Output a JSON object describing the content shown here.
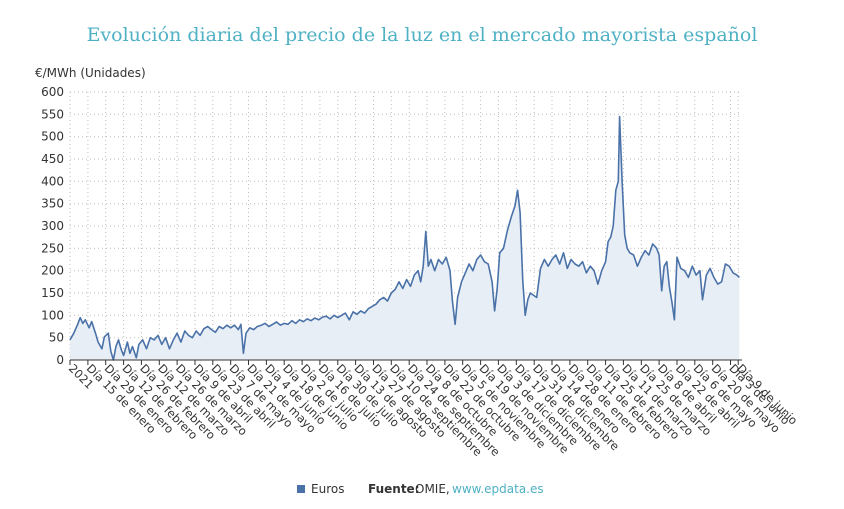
{
  "title": "Evolución diaria del precio de la luz en el mercado mayorista español",
  "footer": {
    "legend_label": "Euros",
    "source_key": "Fuente:",
    "source_value": "OMIE,",
    "source_link": "www.epdata.es"
  },
  "colors": {
    "title": "#4fb1c4",
    "line": "#4a72a8",
    "fill": "#e8eef6",
    "link": "#4fb1c4"
  },
  "chart_data": {
    "type": "area",
    "title": "Evolución diaria del precio de la luz en el mercado mayorista español",
    "ylabel": "€/MWh (Unidades)",
    "xlabel": "",
    "ylim": [
      0,
      600
    ],
    "yticks": [
      0,
      50,
      100,
      150,
      200,
      250,
      300,
      350,
      400,
      450,
      500,
      550,
      600
    ],
    "grid": true,
    "legend": "bottom",
    "x_start": "2021-01-01",
    "x_end": "2022-06-12",
    "xtick_labels": [
      {
        "date": "2021-01-01",
        "label": "2021"
      },
      {
        "date": "2021-01-15",
        "label": "Día 15 de enero"
      },
      {
        "date": "2021-01-29",
        "label": "Día 29 de enero"
      },
      {
        "date": "2021-02-12",
        "label": "Día 12 de febrero"
      },
      {
        "date": "2021-02-26",
        "label": "Día 26 de febrero"
      },
      {
        "date": "2021-03-12",
        "label": "Día 12 de marzo"
      },
      {
        "date": "2021-03-26",
        "label": "Día 26 de marzo"
      },
      {
        "date": "2021-04-09",
        "label": "Día 9 de abril"
      },
      {
        "date": "2021-04-23",
        "label": "Día 23 de abril"
      },
      {
        "date": "2021-05-07",
        "label": "Día 7 de mayo"
      },
      {
        "date": "2021-05-21",
        "label": "Día 21 de mayo"
      },
      {
        "date": "2021-06-04",
        "label": "Día 4 de junio"
      },
      {
        "date": "2021-06-18",
        "label": "Día 18 de junio"
      },
      {
        "date": "2021-07-02",
        "label": "Día 2 de julio"
      },
      {
        "date": "2021-07-16",
        "label": "Día 16 de julio"
      },
      {
        "date": "2021-07-30",
        "label": "Día 30 de julio"
      },
      {
        "date": "2021-08-13",
        "label": "Día 13 de agosto"
      },
      {
        "date": "2021-08-27",
        "label": "Día 27 de agosto"
      },
      {
        "date": "2021-09-10",
        "label": "Día 10 de septiembre"
      },
      {
        "date": "2021-09-24",
        "label": "Día 24 de septiembre"
      },
      {
        "date": "2021-10-08",
        "label": "Día 8 de octubre"
      },
      {
        "date": "2021-10-22",
        "label": "Día 22 de octubre"
      },
      {
        "date": "2021-11-05",
        "label": "Día 5 de noviembre"
      },
      {
        "date": "2021-11-19",
        "label": "Día 19 de noviembre"
      },
      {
        "date": "2021-12-03",
        "label": "Día 3 de diciembre"
      },
      {
        "date": "2021-12-17",
        "label": "Día 17 de diciembre"
      },
      {
        "date": "2021-12-31",
        "label": "Día 31 de diciembre"
      },
      {
        "date": "2022-01-14",
        "label": "Día 14 de enero"
      },
      {
        "date": "2022-01-28",
        "label": "Día 28 de enero"
      },
      {
        "date": "2022-02-11",
        "label": "Día 11 de febrero"
      },
      {
        "date": "2022-02-25",
        "label": "Día 25 de febrero"
      },
      {
        "date": "2022-03-11",
        "label": "Día 11 de marzo"
      },
      {
        "date": "2022-03-25",
        "label": "Día 25 de marzo"
      },
      {
        "date": "2022-04-08",
        "label": "Día 8 de abril"
      },
      {
        "date": "2022-04-22",
        "label": "Día 22 de abril"
      },
      {
        "date": "2022-05-06",
        "label": "Día 6 de mayo"
      },
      {
        "date": "2022-05-20",
        "label": "Día 20 de mayo"
      },
      {
        "date": "2022-06-03",
        "label": "Día 3 de junio"
      },
      {
        "date": "2022-06-09",
        "label": "Día 9 de junio"
      }
    ],
    "series": [
      {
        "name": "Euros",
        "points": [
          [
            "2021-01-01",
            45
          ],
          [
            "2021-01-04",
            60
          ],
          [
            "2021-01-07",
            80
          ],
          [
            "2021-01-09",
            95
          ],
          [
            "2021-01-11",
            82
          ],
          [
            "2021-01-13",
            90
          ],
          [
            "2021-01-16",
            72
          ],
          [
            "2021-01-18",
            86
          ],
          [
            "2021-01-21",
            60
          ],
          [
            "2021-01-23",
            40
          ],
          [
            "2021-01-26",
            25
          ],
          [
            "2021-01-28",
            52
          ],
          [
            "2021-01-31",
            60
          ],
          [
            "2021-02-02",
            20
          ],
          [
            "2021-02-04",
            0
          ],
          [
            "2021-02-06",
            30
          ],
          [
            "2021-02-08",
            45
          ],
          [
            "2021-02-10",
            25
          ],
          [
            "2021-02-12",
            10
          ],
          [
            "2021-02-15",
            40
          ],
          [
            "2021-02-17",
            15
          ],
          [
            "2021-02-19",
            30
          ],
          [
            "2021-02-22",
            5
          ],
          [
            "2021-02-24",
            35
          ],
          [
            "2021-02-27",
            45
          ],
          [
            "2021-03-02",
            25
          ],
          [
            "2021-03-05",
            50
          ],
          [
            "2021-03-08",
            45
          ],
          [
            "2021-03-11",
            55
          ],
          [
            "2021-03-14",
            35
          ],
          [
            "2021-03-17",
            50
          ],
          [
            "2021-03-20",
            25
          ],
          [
            "2021-03-23",
            45
          ],
          [
            "2021-03-26",
            60
          ],
          [
            "2021-03-29",
            40
          ],
          [
            "2021-04-01",
            65
          ],
          [
            "2021-04-04",
            55
          ],
          [
            "2021-04-07",
            50
          ],
          [
            "2021-04-10",
            65
          ],
          [
            "2021-04-13",
            55
          ],
          [
            "2021-04-16",
            70
          ],
          [
            "2021-04-19",
            75
          ],
          [
            "2021-04-22",
            68
          ],
          [
            "2021-04-25",
            62
          ],
          [
            "2021-04-28",
            75
          ],
          [
            "2021-05-01",
            70
          ],
          [
            "2021-05-04",
            78
          ],
          [
            "2021-05-07",
            72
          ],
          [
            "2021-05-10",
            78
          ],
          [
            "2021-05-13",
            68
          ],
          [
            "2021-05-15",
            80
          ],
          [
            "2021-05-17",
            15
          ],
          [
            "2021-05-19",
            60
          ],
          [
            "2021-05-22",
            72
          ],
          [
            "2021-05-25",
            68
          ],
          [
            "2021-05-28",
            75
          ],
          [
            "2021-05-31",
            78
          ],
          [
            "2021-06-03",
            82
          ],
          [
            "2021-06-06",
            75
          ],
          [
            "2021-06-09",
            80
          ],
          [
            "2021-06-12",
            85
          ],
          [
            "2021-06-15",
            78
          ],
          [
            "2021-06-18",
            82
          ],
          [
            "2021-06-21",
            80
          ],
          [
            "2021-06-24",
            88
          ],
          [
            "2021-06-27",
            82
          ],
          [
            "2021-06-30",
            90
          ],
          [
            "2021-07-03",
            86
          ],
          [
            "2021-07-06",
            92
          ],
          [
            "2021-07-09",
            88
          ],
          [
            "2021-07-12",
            94
          ],
          [
            "2021-07-15",
            90
          ],
          [
            "2021-07-18",
            96
          ],
          [
            "2021-07-21",
            98
          ],
          [
            "2021-07-24",
            92
          ],
          [
            "2021-07-27",
            100
          ],
          [
            "2021-07-30",
            95
          ],
          [
            "2021-08-02",
            100
          ],
          [
            "2021-08-05",
            105
          ],
          [
            "2021-08-08",
            90
          ],
          [
            "2021-08-11",
            108
          ],
          [
            "2021-08-14",
            102
          ],
          [
            "2021-08-17",
            110
          ],
          [
            "2021-08-20",
            105
          ],
          [
            "2021-08-23",
            115
          ],
          [
            "2021-08-26",
            120
          ],
          [
            "2021-08-29",
            125
          ],
          [
            "2021-09-01",
            135
          ],
          [
            "2021-09-04",
            140
          ],
          [
            "2021-09-07",
            132
          ],
          [
            "2021-09-10",
            150
          ],
          [
            "2021-09-13",
            158
          ],
          [
            "2021-09-16",
            175
          ],
          [
            "2021-09-19",
            160
          ],
          [
            "2021-09-22",
            180
          ],
          [
            "2021-09-25",
            165
          ],
          [
            "2021-09-28",
            190
          ],
          [
            "2021-10-01",
            200
          ],
          [
            "2021-10-03",
            175
          ],
          [
            "2021-10-05",
            210
          ],
          [
            "2021-10-07",
            288
          ],
          [
            "2021-10-09",
            210
          ],
          [
            "2021-10-11",
            225
          ],
          [
            "2021-10-14",
            200
          ],
          [
            "2021-10-17",
            225
          ],
          [
            "2021-10-20",
            215
          ],
          [
            "2021-10-23",
            230
          ],
          [
            "2021-10-26",
            200
          ],
          [
            "2021-10-28",
            130
          ],
          [
            "2021-10-30",
            80
          ],
          [
            "2021-11-01",
            140
          ],
          [
            "2021-11-04",
            175
          ],
          [
            "2021-11-07",
            195
          ],
          [
            "2021-11-10",
            215
          ],
          [
            "2021-11-13",
            200
          ],
          [
            "2021-11-16",
            225
          ],
          [
            "2021-11-19",
            235
          ],
          [
            "2021-11-22",
            220
          ],
          [
            "2021-11-25",
            215
          ],
          [
            "2021-11-28",
            175
          ],
          [
            "2021-11-30",
            110
          ],
          [
            "2021-12-02",
            160
          ],
          [
            "2021-12-04",
            240
          ],
          [
            "2021-12-07",
            250
          ],
          [
            "2021-12-10",
            290
          ],
          [
            "2021-12-13",
            320
          ],
          [
            "2021-12-16",
            345
          ],
          [
            "2021-12-18",
            380
          ],
          [
            "2021-12-20",
            330
          ],
          [
            "2021-12-22",
            180
          ],
          [
            "2021-12-24",
            100
          ],
          [
            "2021-12-26",
            135
          ],
          [
            "2021-12-28",
            150
          ],
          [
            "2022-01-02",
            140
          ],
          [
            "2022-01-05",
            205
          ],
          [
            "2022-01-08",
            225
          ],
          [
            "2022-01-11",
            210
          ],
          [
            "2022-01-14",
            225
          ],
          [
            "2022-01-17",
            235
          ],
          [
            "2022-01-20",
            215
          ],
          [
            "2022-01-23",
            240
          ],
          [
            "2022-01-26",
            205
          ],
          [
            "2022-01-29",
            225
          ],
          [
            "2022-02-01",
            215
          ],
          [
            "2022-02-04",
            210
          ],
          [
            "2022-02-07",
            220
          ],
          [
            "2022-02-10",
            195
          ],
          [
            "2022-02-13",
            210
          ],
          [
            "2022-02-16",
            200
          ],
          [
            "2022-02-19",
            170
          ],
          [
            "2022-02-22",
            200
          ],
          [
            "2022-02-25",
            220
          ],
          [
            "2022-02-27",
            265
          ],
          [
            "2022-03-01",
            275
          ],
          [
            "2022-03-03",
            300
          ],
          [
            "2022-03-05",
            380
          ],
          [
            "2022-03-07",
            400
          ],
          [
            "2022-03-08",
            545
          ],
          [
            "2022-03-10",
            400
          ],
          [
            "2022-03-12",
            280
          ],
          [
            "2022-03-14",
            250
          ],
          [
            "2022-03-16",
            240
          ],
          [
            "2022-03-19",
            235
          ],
          [
            "2022-03-22",
            210
          ],
          [
            "2022-03-25",
            230
          ],
          [
            "2022-03-28",
            245
          ],
          [
            "2022-03-31",
            235
          ],
          [
            "2022-04-03",
            260
          ],
          [
            "2022-04-06",
            250
          ],
          [
            "2022-04-08",
            235
          ],
          [
            "2022-04-10",
            155
          ],
          [
            "2022-04-12",
            210
          ],
          [
            "2022-04-14",
            220
          ],
          [
            "2022-04-16",
            165
          ],
          [
            "2022-04-18",
            130
          ],
          [
            "2022-04-20",
            90
          ],
          [
            "2022-04-22",
            230
          ],
          [
            "2022-04-25",
            205
          ],
          [
            "2022-04-28",
            200
          ],
          [
            "2022-05-01",
            185
          ],
          [
            "2022-05-04",
            210
          ],
          [
            "2022-05-07",
            190
          ],
          [
            "2022-05-10",
            200
          ],
          [
            "2022-05-12",
            135
          ],
          [
            "2022-05-15",
            190
          ],
          [
            "2022-05-18",
            205
          ],
          [
            "2022-05-21",
            185
          ],
          [
            "2022-05-24",
            170
          ],
          [
            "2022-05-27",
            175
          ],
          [
            "2022-05-30",
            215
          ],
          [
            "2022-06-02",
            210
          ],
          [
            "2022-06-05",
            195
          ],
          [
            "2022-06-08",
            190
          ],
          [
            "2022-06-10",
            185
          ]
        ]
      }
    ]
  }
}
